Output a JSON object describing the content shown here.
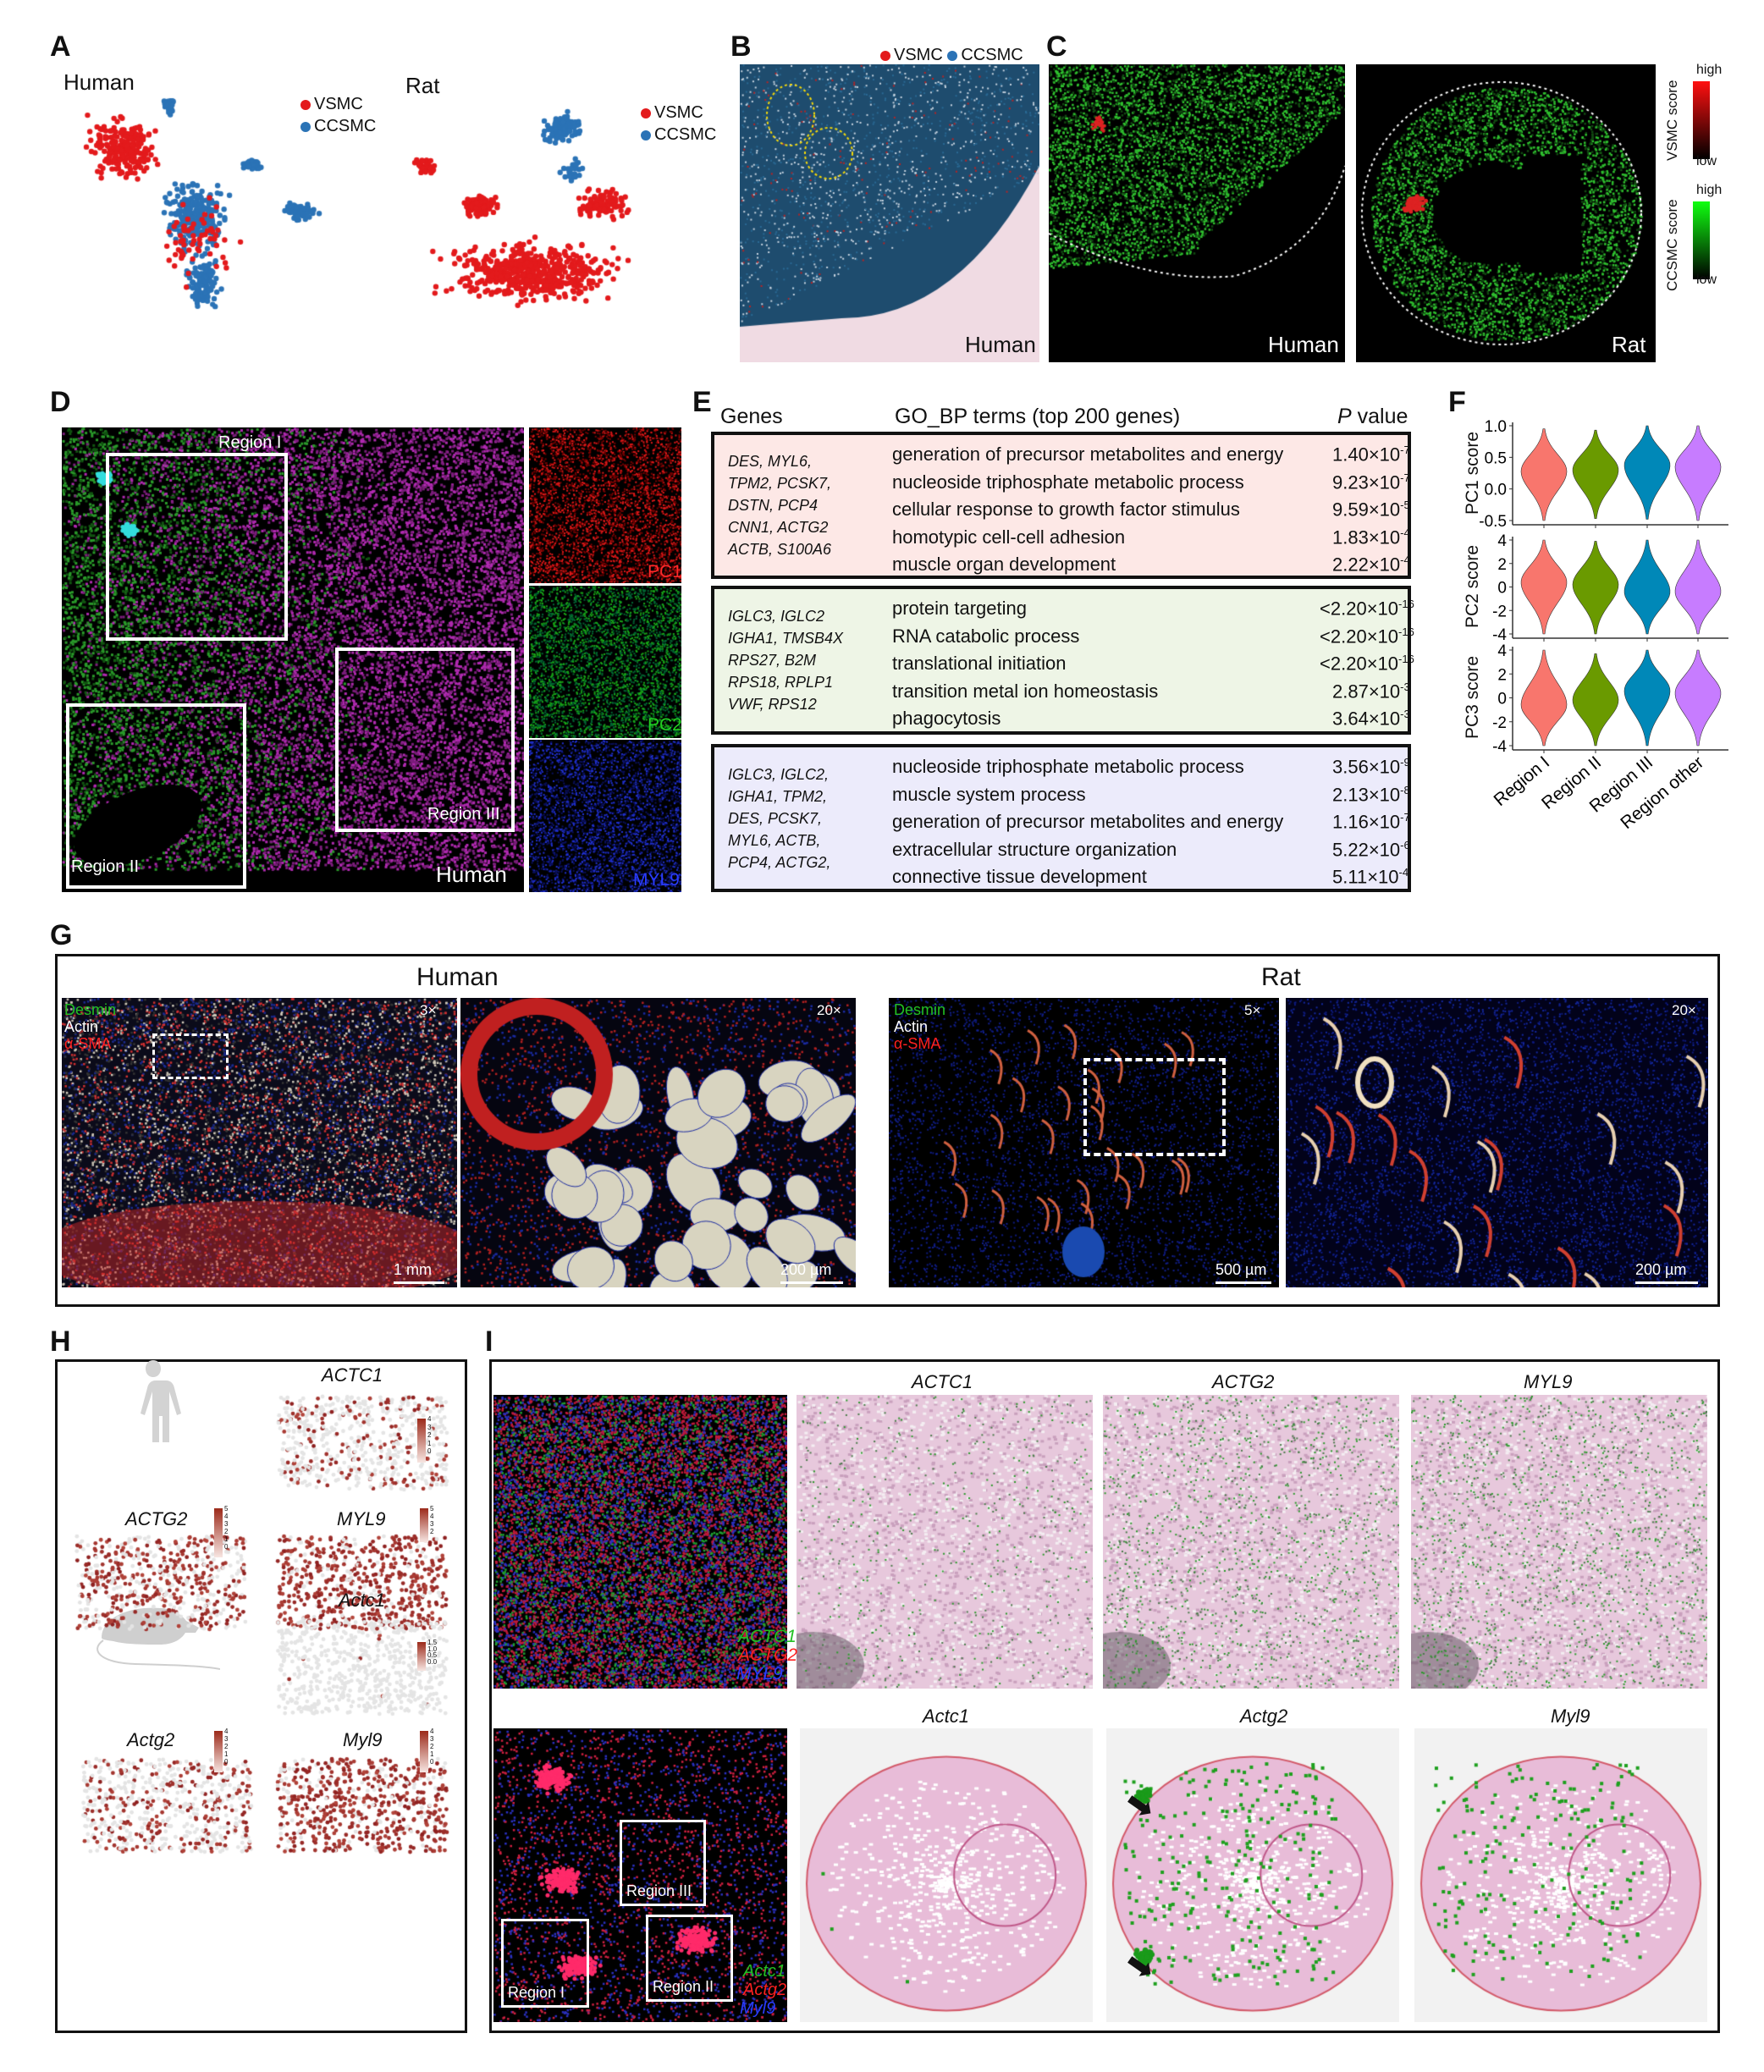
{
  "panel_a": {
    "label": "A",
    "human": {
      "title": "Human",
      "legend": [
        "VSMC",
        "CCSMC"
      ]
    },
    "rat": {
      "title": "Rat",
      "legend": [
        "VSMC",
        "CCSMC"
      ]
    },
    "colors": {
      "VSMC": "#e31a1c",
      "CCSMC": "#2b73b6"
    }
  },
  "panel_b": {
    "label": "B",
    "legend": [
      "VSMC",
      "CCSMC"
    ],
    "caption": "Human"
  },
  "panel_c": {
    "label": "C",
    "human_caption": "Human",
    "rat_caption": "Rat",
    "vsmc_bar": {
      "title": "VSMC score",
      "high": "high",
      "low": "low"
    },
    "ccsmc_bar": {
      "title": "CCSMC score",
      "high": "high",
      "low": "low"
    }
  },
  "panel_d": {
    "label": "D",
    "regions": [
      "Region I",
      "Region II",
      "Region III"
    ],
    "caption": "Human",
    "channels": [
      "PC1",
      "PC2",
      "MYL9"
    ]
  },
  "panel_e": {
    "label": "E",
    "header": {
      "genes": "Genes",
      "terms": "GO_BP terms (top 200 genes)",
      "p_italic": "P",
      "p_rest": " value"
    },
    "groups": [
      {
        "color": "#fde8e6",
        "genes": [
          "DES, MYL6,",
          "TPM2, PCSK7,",
          "DSTN, PCP4",
          "CNN1, ACTG2",
          "ACTB, S100A6"
        ],
        "terms": [
          {
            "term": "generation of precursor metabolites and energy",
            "prefix": "",
            "mantissa": "1.40",
            "exp": "-7"
          },
          {
            "term": "nucleoside triphosphate metabolic process",
            "prefix": "",
            "mantissa": "9.23",
            "exp": "-7"
          },
          {
            "term": "cellular response to growth factor stimulus",
            "prefix": "",
            "mantissa": "9.59",
            "exp": "-5"
          },
          {
            "term": "homotypic cell-cell adhesion",
            "prefix": "",
            "mantissa": "1.83",
            "exp": "-4"
          },
          {
            "term": "muscle organ development",
            "prefix": "",
            "mantissa": "2.22",
            "exp": "-4"
          }
        ]
      },
      {
        "color": "#eef5e6",
        "genes": [
          "IGLC3, IGLC2",
          "IGHA1, TMSB4X",
          "RPS27, B2M",
          "RPS18, RPLP1",
          "VWF, RPS12"
        ],
        "terms": [
          {
            "term": "protein targeting",
            "prefix": "<",
            "mantissa": "2.20",
            "exp": "-16"
          },
          {
            "term": "RNA catabolic process",
            "prefix": "<",
            "mantissa": "2.20",
            "exp": "-16"
          },
          {
            "term": "translational initiation",
            "prefix": "<",
            "mantissa": "2.20",
            "exp": "-16"
          },
          {
            "term": "transition metal ion homeostasis",
            "prefix": "",
            "mantissa": "2.87",
            "exp": "-3"
          },
          {
            "term": "phagocytosis",
            "prefix": "",
            "mantissa": "3.64",
            "exp": "-3"
          }
        ]
      },
      {
        "color": "#ecebfb",
        "genes": [
          "IGLC3, IGLC2,",
          "IGHA1, TPM2,",
          "DES, PCSK7,",
          "MYL6, ACTB,",
          "PCP4, ACTG2,"
        ],
        "terms": [
          {
            "term": "nucleoside triphosphate metabolic process",
            "prefix": "",
            "mantissa": "3.56",
            "exp": "-9"
          },
          {
            "term": "muscle system process",
            "prefix": "",
            "mantissa": "2.13",
            "exp": "-8"
          },
          {
            "term": "generation of precursor metabolites and energy",
            "prefix": "",
            "mantissa": "1.16",
            "exp": "-7"
          },
          {
            "term": "extracellular structure organization",
            "prefix": "",
            "mantissa": "5.22",
            "exp": "-6"
          },
          {
            "term": "connective tissue development",
            "prefix": "",
            "mantissa": "5.11",
            "exp": "-4"
          }
        ]
      }
    ]
  },
  "chart_data": {
    "type": "violin",
    "label": "F",
    "categories": [
      "Region I",
      "Region II",
      "Region III",
      "Region other"
    ],
    "colors": [
      "#f8766d",
      "#6a9a00",
      "#0088b8",
      "#c77cff"
    ],
    "panels": [
      {
        "ylabel": "PC1 score",
        "ylim": [
          -0.5,
          1.0
        ],
        "ticks": [
          "1.0",
          "0.5",
          "0.0",
          "-0.5"
        ],
        "tick_values": [
          1.0,
          0.5,
          0.0,
          -0.5
        ],
        "median": [
          0.28,
          0.3,
          0.38,
          0.35
        ],
        "min": [
          -0.5,
          -0.47,
          -0.48,
          -0.5
        ],
        "max": [
          0.95,
          0.93,
          1.0,
          1.0
        ]
      },
      {
        "ylabel": "PC2 score",
        "ylim": [
          -4,
          4
        ],
        "ticks": [
          "4",
          "2",
          "0",
          "-2",
          "-4"
        ],
        "tick_values": [
          4,
          2,
          0,
          -2,
          -4
        ],
        "median": [
          0.4,
          0.2,
          -0.4,
          -0.4
        ],
        "min": [
          -4,
          -4,
          -4,
          -4
        ],
        "max": [
          4,
          3.9,
          4,
          4
        ]
      },
      {
        "ylabel": "PC3 score",
        "ylim": [
          -4,
          4
        ],
        "ticks": [
          "4",
          "2",
          "0",
          "-2",
          "-4"
        ],
        "tick_values": [
          4,
          2,
          0,
          -2,
          -4
        ],
        "median": [
          -0.6,
          -0.2,
          0.6,
          0.4
        ],
        "min": [
          -4,
          -4,
          -4,
          -4
        ],
        "max": [
          4,
          3.7,
          4,
          4
        ]
      }
    ]
  },
  "panel_g": {
    "label": "G",
    "human_title": "Human",
    "rat_title": "Rat",
    "stains": [
      "Desmin",
      "Actin",
      "α-SMA"
    ],
    "stain_colors": [
      "#22c022",
      "#ffffff",
      "#ff2020"
    ],
    "magnifications": [
      "3×",
      "20×",
      "5×",
      "20×"
    ],
    "scale_bars": [
      "1 mm",
      "200 µm",
      "500 µm",
      "200 µm"
    ]
  },
  "panel_h": {
    "label": "H",
    "human_genes": [
      "ACTC1",
      "ACTG2",
      "MYL9"
    ],
    "rat_genes": [
      "Actc1",
      "Actg2",
      "Myl9"
    ],
    "colorbars": {
      "ACTC1": [
        "4",
        "3",
        "2",
        "1",
        "0"
      ],
      "ACTG2": [
        "5",
        "4",
        "3",
        "2",
        "1",
        "0"
      ],
      "MYL9": [
        "5",
        "4",
        "3",
        "2"
      ],
      "Actc1": [
        "1.5",
        "1.0",
        "0.5",
        "0.0"
      ],
      "Actg2": [
        "4",
        "3",
        "2",
        "1",
        "0"
      ],
      "Myl9": [
        "4",
        "3",
        "2",
        "1",
        "0"
      ]
    }
  },
  "panel_i": {
    "label": "I",
    "human_genes": [
      "ACTC1",
      "ACTG2",
      "MYL9"
    ],
    "rat_genes": [
      "Actc1",
      "Actg2",
      "Myl9"
    ],
    "human_legend": [
      "ACTC1",
      "ACTG2",
      "MYL9"
    ],
    "rat_legend": [
      "Actc1",
      "Actg2",
      "Myl9"
    ],
    "legend_colors": [
      "#22c022",
      "#ff2020",
      "#2a3cff"
    ],
    "rat_regions": [
      "Region I",
      "Region II",
      "Region III"
    ]
  }
}
